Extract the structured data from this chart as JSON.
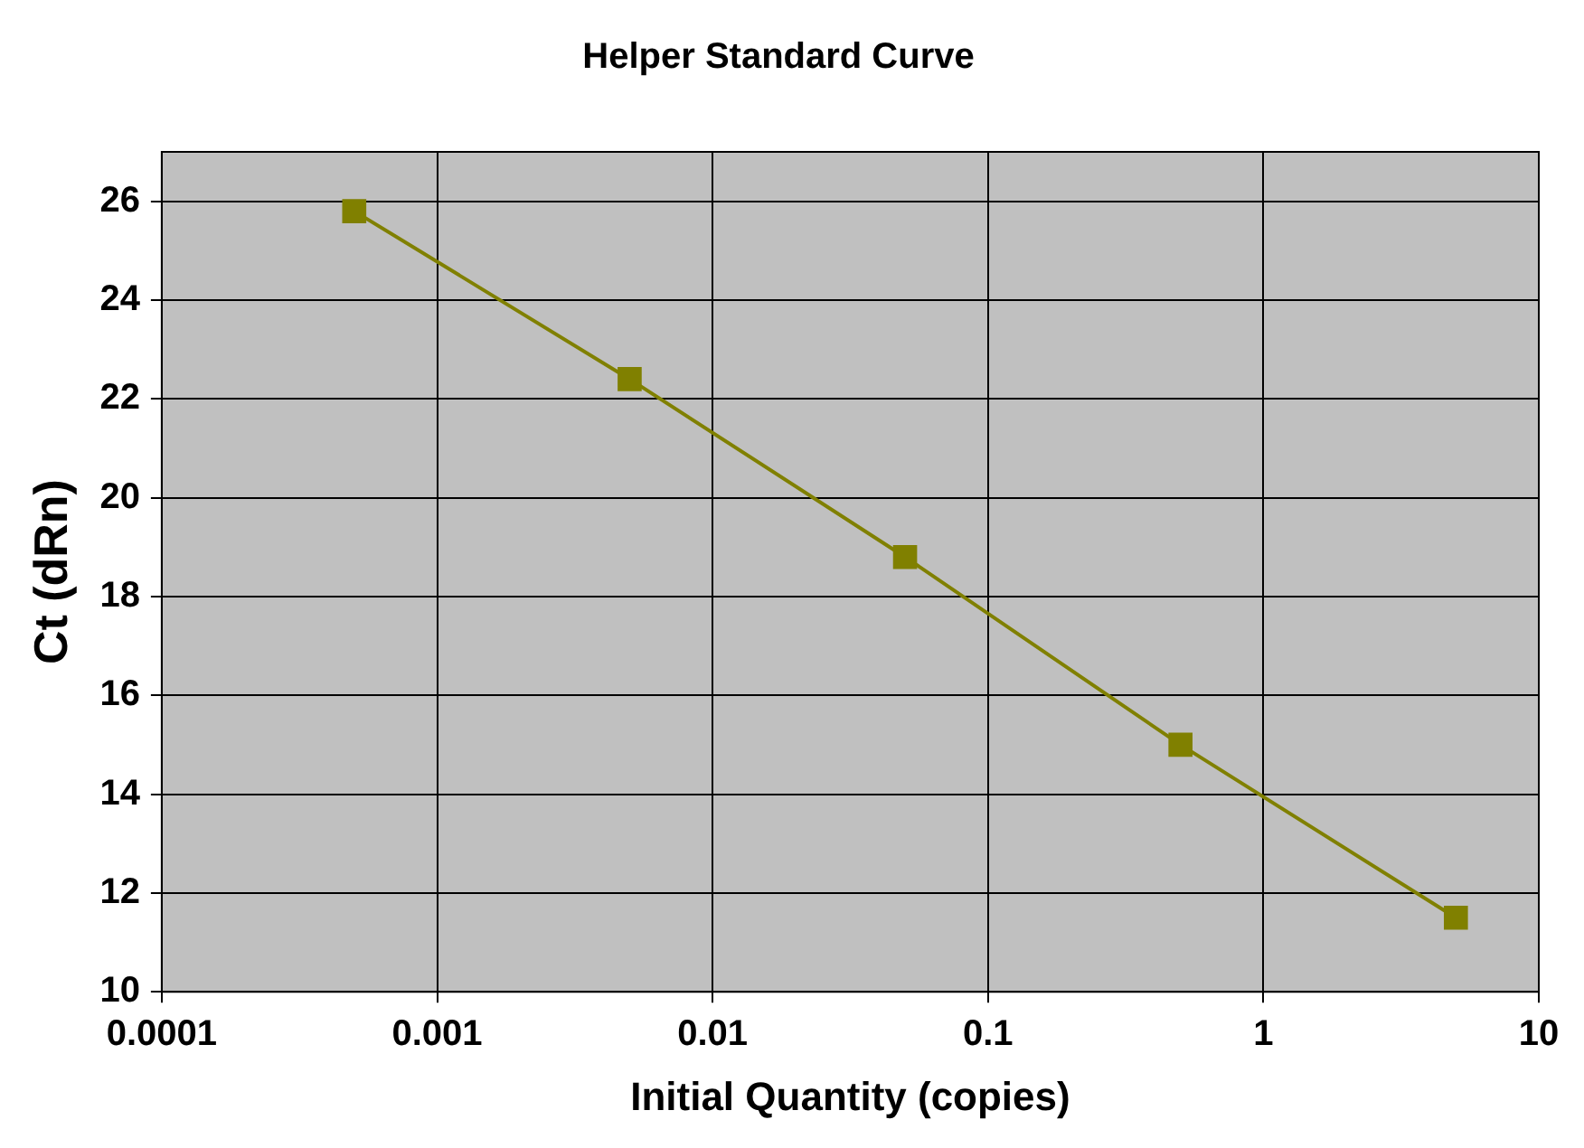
{
  "chart_data": {
    "type": "line",
    "title": "Helper Standard Curve",
    "xlabel": "Initial Quantity (copies)",
    "ylabel": "Ct (dRn)",
    "x": [
      0.0005,
      0.005,
      0.05,
      0.5,
      5
    ],
    "series": [
      {
        "color": "#808000",
        "values": [
          25.8,
          22.4,
          18.8,
          15.0,
          11.5
        ]
      }
    ],
    "log": "x",
    "xlim": [
      0.0001,
      10
    ],
    "xticks": [
      0.0001,
      0.001,
      0.01,
      0.1,
      1,
      10
    ],
    "ylim": [
      10,
      27
    ],
    "yticks": [
      10,
      12,
      14,
      16,
      18,
      20,
      22,
      24,
      26
    ],
    "grid": true,
    "legend": false,
    "marker": "square",
    "line_style": "solid"
  }
}
